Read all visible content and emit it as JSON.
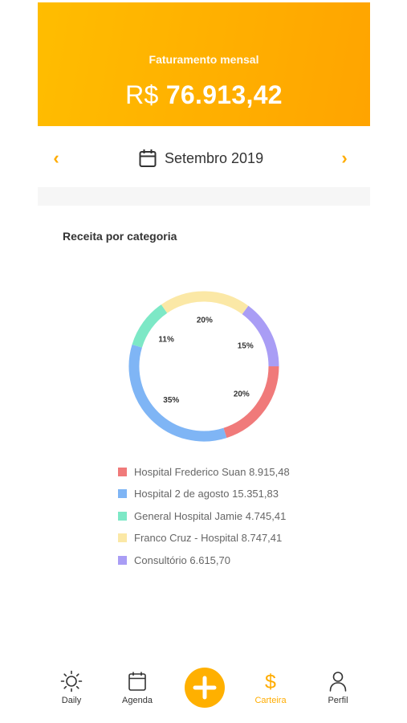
{
  "header": {
    "label": "Faturamento mensal",
    "currency": "R$",
    "amount": "76.913,42"
  },
  "month_nav": {
    "prev_icon": "chevron-left-icon",
    "next_icon": "chevron-right-icon",
    "calendar_icon": "calendar-icon",
    "month": "Setembro 2019"
  },
  "section": {
    "title": "Receita por categoria"
  },
  "chart_data": {
    "type": "donut",
    "slices": [
      {
        "name": "Hospital Frederico Suan",
        "value": 8915.48,
        "value_label": "8.915,48",
        "pct_label": "20%",
        "color": "#f07a7a"
      },
      {
        "name": "Hospital 2 de agosto",
        "value": 15351.83,
        "value_label": "15.351,83",
        "pct_label": "35%",
        "color": "#7fb5f5"
      },
      {
        "name": "General Hospital Jamie",
        "value": 4745.41,
        "value_label": "4.745,41",
        "pct_label": "11%",
        "color": "#7de8c6"
      },
      {
        "name": "Franco Cruz - Hospital",
        "value": 8747.41,
        "value_label": "8.747,41",
        "pct_label": "20%",
        "color": "#fbe8a6"
      },
      {
        "name": "Consultório",
        "value": 6615.7,
        "value_label": "6.615,70",
        "pct_label": "15%",
        "color": "#a99df5"
      }
    ],
    "legend": [
      "Hospital Frederico Suan 8.915,48",
      "Hospital 2 de agosto 15.351,83",
      "General Hospital Jamie 4.745,41",
      "Franco Cruz - Hospital 8.747,41",
      "Consultório 6.615,70"
    ]
  },
  "tabbar": {
    "tabs": [
      {
        "label": "Daily",
        "icon": "sun-icon"
      },
      {
        "label": "Agenda",
        "icon": "calendar-icon"
      },
      {
        "label": "Carteira",
        "icon": "dollar-icon",
        "active": true
      },
      {
        "label": "Perfil",
        "icon": "user-icon"
      }
    ],
    "fab_icon": "plus-icon"
  },
  "colors": {
    "accent": "#ffac00",
    "header_bg": "#ffb300",
    "text": "#333333",
    "muted": "#666666"
  }
}
